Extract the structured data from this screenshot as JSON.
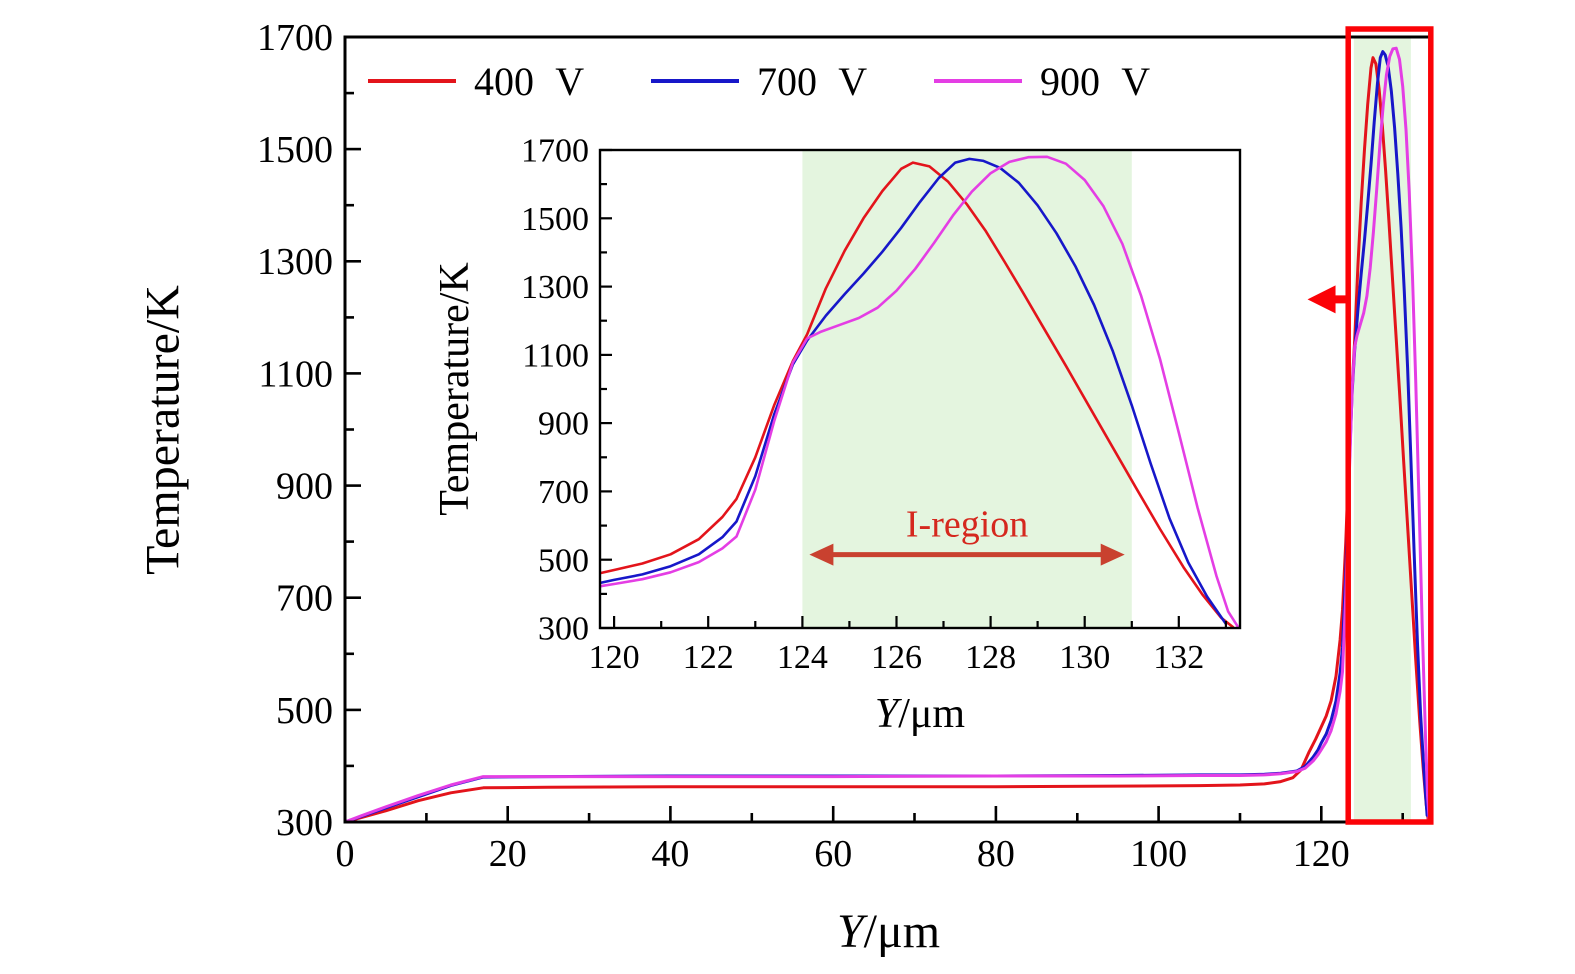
{
  "legend": {
    "items": [
      {
        "label": "400 V",
        "color": "#e3141b"
      },
      {
        "label": "700 V",
        "color": "#1717c9"
      },
      {
        "label": "900 V",
        "color": "#e43ee4"
      }
    ]
  },
  "chart_data": {
    "type": "line",
    "title": "",
    "series": [
      {
        "name": "400 V",
        "color": "#e3141b",
        "points": [
          [
            0,
            300
          ],
          [
            2,
            308
          ],
          [
            5,
            320
          ],
          [
            9,
            338
          ],
          [
            13,
            352
          ],
          [
            17,
            361
          ],
          [
            25,
            362
          ],
          [
            40,
            363
          ],
          [
            60,
            363
          ],
          [
            80,
            363
          ],
          [
            95,
            364
          ],
          [
            105,
            365
          ],
          [
            110,
            366
          ],
          [
            113,
            368
          ],
          [
            115,
            372
          ],
          [
            116.5,
            379
          ],
          [
            117.5,
            393
          ],
          [
            118.5,
            425
          ],
          [
            119.3,
            448
          ],
          [
            120,
            470
          ],
          [
            120.6,
            489
          ],
          [
            121.2,
            516
          ],
          [
            121.8,
            560
          ],
          [
            122.3,
            625
          ],
          [
            122.6,
            678
          ],
          [
            123,
            800
          ],
          [
            123.4,
            952
          ],
          [
            123.8,
            1082
          ],
          [
            124.1,
            1160
          ],
          [
            124.5,
            1295
          ],
          [
            124.9,
            1405
          ],
          [
            125.3,
            1500
          ],
          [
            125.7,
            1580
          ],
          [
            126.1,
            1645
          ],
          [
            126.35,
            1663
          ],
          [
            126.7,
            1652
          ],
          [
            127.1,
            1607
          ],
          [
            127.5,
            1540
          ],
          [
            127.9,
            1462
          ],
          [
            128.3,
            1372
          ],
          [
            128.7,
            1280
          ],
          [
            129.1,
            1185
          ],
          [
            129.6,
            1068
          ],
          [
            130.1,
            948
          ],
          [
            130.6,
            828
          ],
          [
            131.1,
            708
          ],
          [
            131.6,
            590
          ],
          [
            132.1,
            478
          ],
          [
            132.5,
            398
          ],
          [
            132.9,
            330
          ],
          [
            133.15,
            303
          ]
        ]
      },
      {
        "name": "700 V",
        "color": "#1717c9",
        "points": [
          [
            0,
            300
          ],
          [
            2,
            310
          ],
          [
            5,
            325
          ],
          [
            9,
            345
          ],
          [
            13,
            365
          ],
          [
            17,
            380
          ],
          [
            25,
            381
          ],
          [
            40,
            382
          ],
          [
            60,
            382
          ],
          [
            80,
            382
          ],
          [
            95,
            383
          ],
          [
            105,
            384
          ],
          [
            110,
            384
          ],
          [
            113,
            385
          ],
          [
            115,
            387
          ],
          [
            117,
            391
          ],
          [
            118,
            399
          ],
          [
            119,
            416
          ],
          [
            119.6,
            429
          ],
          [
            120,
            441
          ],
          [
            120.6,
            457
          ],
          [
            121.2,
            481
          ],
          [
            121.8,
            516
          ],
          [
            122.3,
            566
          ],
          [
            122.6,
            612
          ],
          [
            123,
            745
          ],
          [
            123.4,
            925
          ],
          [
            123.8,
            1072
          ],
          [
            124.1,
            1142
          ],
          [
            124.5,
            1215
          ],
          [
            124.9,
            1278
          ],
          [
            125.3,
            1338
          ],
          [
            125.7,
            1402
          ],
          [
            126.1,
            1472
          ],
          [
            126.5,
            1548
          ],
          [
            126.9,
            1618
          ],
          [
            127.25,
            1663
          ],
          [
            127.55,
            1674
          ],
          [
            127.85,
            1668
          ],
          [
            128.2,
            1648
          ],
          [
            128.6,
            1604
          ],
          [
            129,
            1538
          ],
          [
            129.4,
            1456
          ],
          [
            129.8,
            1360
          ],
          [
            130.2,
            1246
          ],
          [
            130.6,
            1110
          ],
          [
            131,
            952
          ],
          [
            131.4,
            782
          ],
          [
            131.8,
            622
          ],
          [
            132.2,
            492
          ],
          [
            132.6,
            392
          ],
          [
            133,
            312
          ]
        ]
      },
      {
        "name": "900 V",
        "color": "#e43ee4",
        "points": [
          [
            0,
            300
          ],
          [
            2,
            311
          ],
          [
            5,
            327
          ],
          [
            9,
            347
          ],
          [
            13,
            366
          ],
          [
            17,
            381
          ],
          [
            25,
            381
          ],
          [
            40,
            381
          ],
          [
            60,
            381
          ],
          [
            80,
            382
          ],
          [
            95,
            382
          ],
          [
            105,
            383
          ],
          [
            110,
            383
          ],
          [
            113,
            384
          ],
          [
            115,
            386
          ],
          [
            117,
            390
          ],
          [
            118,
            396
          ],
          [
            119,
            409
          ],
          [
            119.6,
            420
          ],
          [
            120,
            429
          ],
          [
            120.6,
            443
          ],
          [
            121.2,
            463
          ],
          [
            121.8,
            493
          ],
          [
            122.3,
            533
          ],
          [
            122.6,
            568
          ],
          [
            123,
            705
          ],
          [
            123.4,
            905
          ],
          [
            123.8,
            1078
          ],
          [
            124.1,
            1148
          ],
          [
            124.4,
            1168
          ],
          [
            124.8,
            1188
          ],
          [
            125.2,
            1208
          ],
          [
            125.6,
            1238
          ],
          [
            126,
            1288
          ],
          [
            126.4,
            1352
          ],
          [
            126.8,
            1428
          ],
          [
            127.2,
            1508
          ],
          [
            127.6,
            1578
          ],
          [
            128,
            1632
          ],
          [
            128.4,
            1665
          ],
          [
            128.8,
            1679
          ],
          [
            129.2,
            1680
          ],
          [
            129.6,
            1660
          ],
          [
            130,
            1612
          ],
          [
            130.4,
            1535
          ],
          [
            130.8,
            1425
          ],
          [
            131.2,
            1272
          ],
          [
            131.6,
            1088
          ],
          [
            132,
            872
          ],
          [
            132.4,
            652
          ],
          [
            132.8,
            452
          ],
          [
            133.05,
            348
          ],
          [
            133.25,
            305
          ]
        ]
      }
    ],
    "main": {
      "xlabel": "Y/μm",
      "xlabel_italic": "Y",
      "xlabel_unit": "/μm",
      "ylabel": "Temperature/K",
      "xlim": [
        0,
        133.6
      ],
      "ylim": [
        300,
        1700
      ],
      "xticks": [
        0,
        20,
        40,
        60,
        80,
        100,
        120
      ],
      "xminorticks": [
        10,
        30,
        50,
        70,
        90,
        110,
        130
      ],
      "yticks": [
        300,
        500,
        700,
        900,
        1100,
        1300,
        1500,
        1700
      ],
      "yminorticks": [
        400,
        600,
        800,
        1000,
        1200,
        1400,
        1600
      ],
      "grid": false,
      "green_band": {
        "x0": 124,
        "x1": 131,
        "color": "#e4f5df"
      },
      "highlight_rect": {
        "x0": 123.3,
        "x1": 133.45,
        "color": "#fb0207"
      },
      "pointer_arrow": {
        "x_head": 118.3,
        "x_tail": 123.25,
        "y": 1232,
        "color": "#fb0207"
      }
    },
    "inset": {
      "xlabel": "Y/μm",
      "xlabel_italic": "Y",
      "xlabel_unit": "/μm",
      "ylabel": "Temperature/K",
      "xlim": [
        119.7,
        133.3
      ],
      "ylim": [
        300,
        1700
      ],
      "xticks": [
        120,
        122,
        124,
        126,
        128,
        130,
        132
      ],
      "xminorticks": [
        121,
        123,
        125,
        127,
        129,
        131,
        133
      ],
      "yticks": [
        300,
        500,
        700,
        900,
        1100,
        1300,
        1500,
        1700
      ],
      "yminorticks": [
        400,
        600,
        800,
        1000,
        1200,
        1400,
        1600
      ],
      "grid": false,
      "green_band": {
        "x0": 124,
        "x1": 131,
        "color": "#e4f5df"
      },
      "iregion": {
        "label": "I-region",
        "x0": 124.15,
        "x1": 130.85,
        "arrow_y": 515,
        "color": "#c9412f",
        "label_color": "#d5281e"
      }
    }
  }
}
